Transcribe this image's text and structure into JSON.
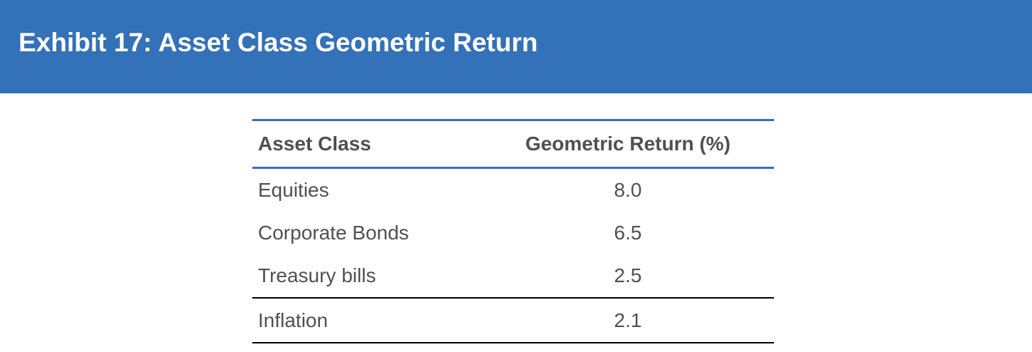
{
  "exhibit": {
    "title": "Exhibit 17: Asset Class Geometric Return"
  },
  "table": {
    "headers": [
      "Asset Class",
      "Geometric Return (%)"
    ],
    "rows": [
      {
        "asset_class": "Equities",
        "geometric_return": "8.0"
      },
      {
        "asset_class": "Corporate Bonds",
        "geometric_return": "6.5"
      },
      {
        "asset_class": "Treasury bills",
        "geometric_return": "2.5"
      },
      {
        "asset_class": "Inflation",
        "geometric_return": "2.1"
      }
    ]
  },
  "colors": {
    "header_band": "#3371b9",
    "header_text": "#ffffff",
    "table_text": "#505050",
    "rule_accent": "#3371b9",
    "rule_dark": "#000000"
  }
}
